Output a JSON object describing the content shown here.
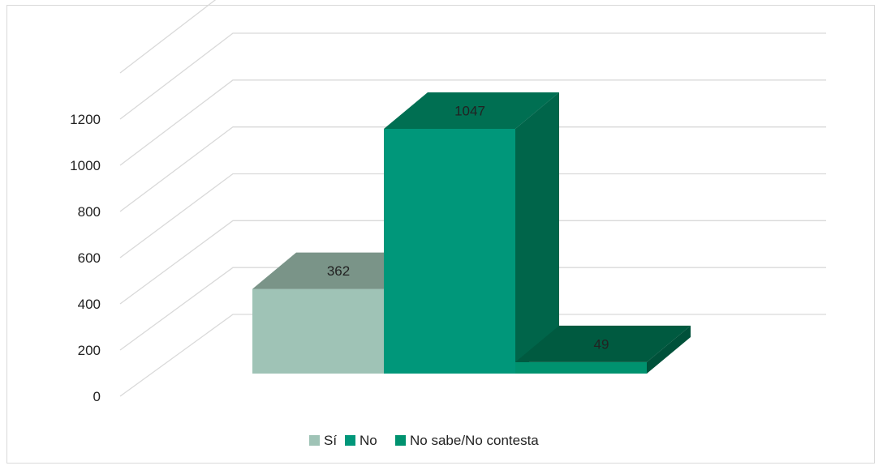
{
  "chart_data": {
    "type": "bar",
    "style": "3d-clustered",
    "categories": [
      ""
    ],
    "series": [
      {
        "name": "Sí",
        "values": [
          362
        ],
        "color": "#9fc3b6",
        "top_color": "#7a9488",
        "side_color": "#6f8b7f"
      },
      {
        "name": "No",
        "values": [
          1047
        ],
        "color": "#00977a",
        "top_color": "#006f52",
        "side_color": "#00654a"
      },
      {
        "name": "No sabe/No contesta",
        "values": [
          49
        ],
        "color": "#00926f",
        "top_color": "#005a40",
        "side_color": "#00513a"
      }
    ],
    "ylim": [
      0,
      1200
    ],
    "yticks": [
      0,
      200,
      400,
      600,
      800,
      1000,
      1200
    ],
    "grid": true,
    "legend_position": "bottom",
    "data_labels": true,
    "title": "",
    "xlabel": "",
    "ylabel": ""
  }
}
